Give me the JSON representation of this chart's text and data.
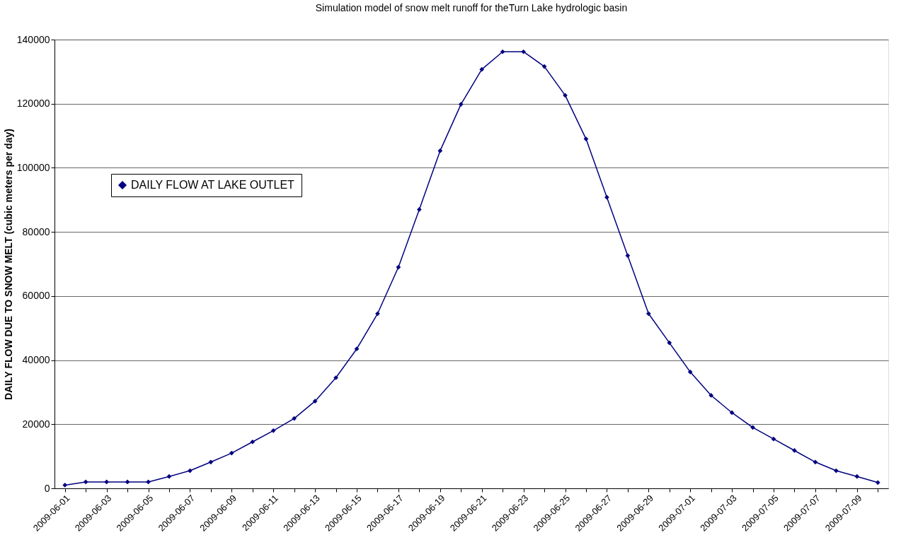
{
  "chart_data": {
    "type": "line",
    "title": "Simulation model of snow melt runoff for theTurn Lake hydrologic basin",
    "ylabel": "DAILY FLOW DUE TO SNOW MELT (cubic meters per day)",
    "categories": [
      "2009-06-01",
      null,
      "2009-06-03",
      null,
      "2009-06-05",
      null,
      "2009-06-07",
      null,
      "2009-06-09",
      null,
      "2009-06-11",
      null,
      "2009-06-13",
      null,
      "2009-06-15",
      null,
      "2009-06-17",
      null,
      "2009-06-19",
      null,
      "2009-06-21",
      null,
      "2009-06-23",
      null,
      "2009-06-25",
      null,
      "2009-06-27",
      null,
      "2009-06-29",
      null,
      "2009-07-01",
      null,
      "2009-07-03",
      null,
      "2009-07-05",
      null,
      "2009-07-07",
      null,
      "2009-07-09",
      null
    ],
    "series": [
      {
        "name": "DAILY FLOW AT LAKE OUTLET",
        "color": "#000080",
        "values": [
          1000,
          2000,
          2000,
          2000,
          2000,
          3700,
          5500,
          8200,
          11000,
          14500,
          18000,
          21800,
          27200,
          34500,
          43500,
          54500,
          69000,
          87000,
          105300,
          119800,
          130700,
          136200,
          136200,
          131600,
          122600,
          109000,
          90800,
          72600,
          54500,
          45400,
          36300,
          29000,
          23600,
          19000,
          15400,
          11800,
          8200,
          5500,
          3700,
          1800
        ]
      }
    ],
    "ylim": [
      0,
      140000
    ],
    "yticks": [
      0,
      20000,
      40000,
      60000,
      80000,
      100000,
      120000,
      140000
    ],
    "grid": "y",
    "legend": "top left",
    "marker": "diamond",
    "line_style": "solid"
  }
}
